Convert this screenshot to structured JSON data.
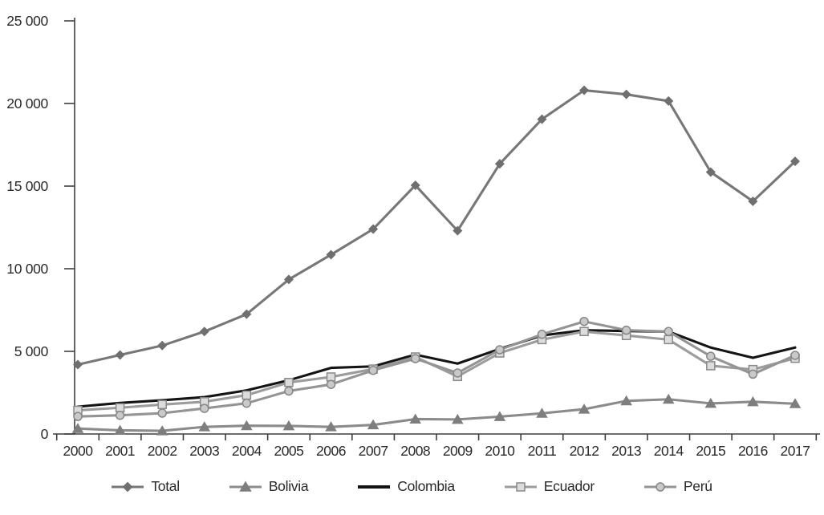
{
  "chart_data": {
    "type": "line",
    "title": "",
    "categories": [
      "2000",
      "2001",
      "2002",
      "2003",
      "2004",
      "2005",
      "2006",
      "2007",
      "2008",
      "2009",
      "2010",
      "2011",
      "2012",
      "2013",
      "2014",
      "2015",
      "2016",
      "2017"
    ],
    "series": [
      {
        "key": "total",
        "name": "Total",
        "marker": "diamond",
        "line_color": "#777777",
        "marker_fill": "#6f6f6f",
        "marker_stroke": "#6f6f6f",
        "values": [
          4200,
          4780,
          5350,
          6200,
          7250,
          9350,
          10850,
          12400,
          15050,
          12300,
          16350,
          19050,
          20800,
          20550,
          20150,
          15850,
          14080,
          16500
        ]
      },
      {
        "key": "bolivia",
        "name": "Bolivia",
        "marker": "triangle",
        "line_color": "#8b8b8b",
        "marker_fill": "#7e7e7e",
        "marker_stroke": "#7e7e7e",
        "values": [
          330,
          220,
          190,
          430,
          500,
          490,
          430,
          550,
          900,
          880,
          1050,
          1250,
          1500,
          2000,
          2100,
          1850,
          1950,
          1830
        ]
      },
      {
        "key": "colombia",
        "name": "Colombia",
        "marker": "none",
        "line_color": "#141414",
        "marker_fill": "#141414",
        "marker_stroke": "#141414",
        "values": [
          1650,
          1880,
          2040,
          2230,
          2640,
          3250,
          4000,
          4090,
          4800,
          4260,
          5150,
          5960,
          6280,
          6230,
          6200,
          5230,
          4610,
          5230
        ]
      },
      {
        "key": "ecuador",
        "name": "Ecuador",
        "marker": "square",
        "line_color": "#9c9c9c",
        "marker_fill": "#dcdcdc",
        "marker_stroke": "#898989",
        "values": [
          1430,
          1590,
          1780,
          1950,
          2350,
          3120,
          3450,
          3930,
          4660,
          3480,
          4900,
          5710,
          6200,
          5960,
          5710,
          4130,
          3900,
          4580
        ]
      },
      {
        "key": "peru",
        "name": "Perú",
        "marker": "circle",
        "line_color": "#949494",
        "marker_fill": "#c9c9c9",
        "marker_stroke": "#868686",
        "values": [
          1060,
          1130,
          1260,
          1550,
          1860,
          2600,
          3000,
          3850,
          4560,
          3690,
          5100,
          6030,
          6810,
          6280,
          6200,
          4700,
          3620,
          4760
        ]
      }
    ],
    "y_axis": {
      "min": 0,
      "max": 25000,
      "step": 5000,
      "tick_labels": [
        "0",
        "5 000",
        "10 000",
        "15 000",
        "20 000",
        "25 000"
      ]
    },
    "x_axis": {
      "tick_labels": [
        "2000",
        "2001",
        "2002",
        "2003",
        "2004",
        "2005",
        "2006",
        "2007",
        "2008",
        "2009",
        "2010",
        "2011",
        "2012",
        "2013",
        "2014",
        "2015",
        "2016",
        "2017"
      ]
    },
    "legend": {
      "position": "bottom",
      "entries": [
        "Total",
        "Bolivia",
        "Colombia",
        "Ecuador",
        "Perú"
      ]
    },
    "grid": false,
    "colors": {
      "axis": "#3f3f3f",
      "text": "#2a2a2a",
      "background": "#ffffff"
    }
  }
}
